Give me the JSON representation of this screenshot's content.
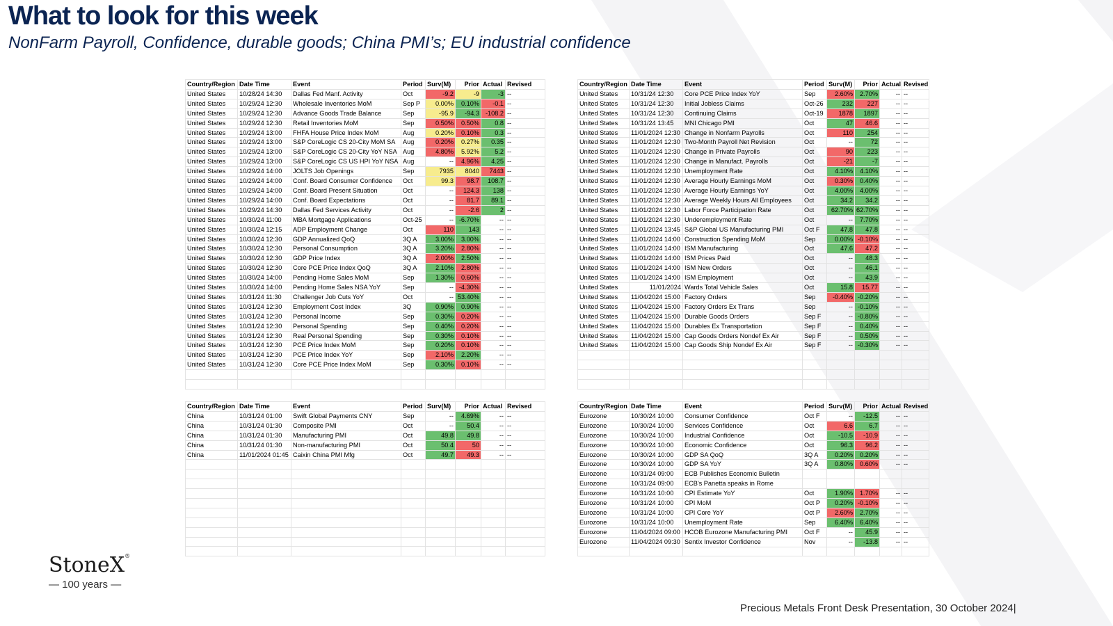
{
  "header": {
    "title": "What to look for this week",
    "subtitle": "NonFarm Payroll, Confidence, durable goods; China PMI’s; EU industrial confidence"
  },
  "columns": [
    "Country/Region",
    "Date Time",
    "Event",
    "Period",
    "Surv(M)",
    "Prior",
    "Actual",
    "Revised"
  ],
  "colors": {
    "green": "#6bbf6f",
    "red": "#f26868",
    "yellow": "#f7ec8e",
    "title": "#0b2452"
  },
  "tables": {
    "us_left": [
      [
        "United States",
        "10/28/24 14:30",
        "Dallas Fed Manf. Activity",
        "Oct",
        "-9.2",
        "-9",
        "-3",
        "--"
      ],
      [
        "United States",
        "10/29/24 12:30",
        "Wholesale Inventories MoM",
        "Sep P",
        "0.00%",
        "0.10%",
        "-0.1",
        "--"
      ],
      [
        "United States",
        "10/29/24 12:30",
        "Advance Goods Trade Balance",
        "Sep",
        "-95.9",
        "-94.3",
        "-108.2",
        "--"
      ],
      [
        "United States",
        "10/29/24 12:30",
        "Retail Inventories MoM",
        "Sep",
        "0.50%",
        "0.50%",
        "0.8",
        "--"
      ],
      [
        "United States",
        "10/29/24 13:00",
        "FHFA House Price Index MoM",
        "Aug",
        "0.20%",
        "0.10%",
        "0.3",
        "--"
      ],
      [
        "United States",
        "10/29/24 13:00",
        "S&P CoreLogic CS 20-City MoM SA",
        "Aug",
        "0.20%",
        "0.27%",
        "0.35",
        "--"
      ],
      [
        "United States",
        "10/29/24 13:00",
        "S&P CoreLogic CS 20-City YoY NSA",
        "Aug",
        "4.80%",
        "5.92%",
        "5.2",
        "--"
      ],
      [
        "United States",
        "10/29/24 13:00",
        "S&P CoreLogic CS US HPI YoY NSA",
        "Aug",
        "--",
        "4.96%",
        "4.25",
        "--"
      ],
      [
        "United States",
        "10/29/24 14:00",
        "JOLTS Job Openings",
        "Sep",
        "7935",
        "8040",
        "7443",
        "--"
      ],
      [
        "United States",
        "10/29/24 14:00",
        "Conf. Board Consumer Confidence",
        "Oct",
        "99.3",
        "98.7",
        "108.7",
        "--"
      ],
      [
        "United States",
        "10/29/24 14:00",
        "Conf. Board Present Situation",
        "Oct",
        "--",
        "124.3",
        "138",
        "--"
      ],
      [
        "United States",
        "10/29/24 14:00",
        "Conf. Board Expectations",
        "Oct",
        "--",
        "81.7",
        "89.1",
        "--"
      ],
      [
        "United States",
        "10/29/24 14:30",
        "Dallas Fed Services Activity",
        "Oct",
        "--",
        "-2.6",
        "2",
        "--"
      ],
      [
        "United States",
        "10/30/24 11:00",
        "MBA Mortgage Applications",
        "Oct-25",
        "--",
        "-6.70%",
        "--",
        "--"
      ],
      [
        "United States",
        "10/30/24 12:15",
        "ADP Employment Change",
        "Oct",
        "110",
        "143",
        "--",
        "--"
      ],
      [
        "United States",
        "10/30/24 12:30",
        "GDP Annualized QoQ",
        "3Q A",
        "3.00%",
        "3.00%",
        "--",
        "--"
      ],
      [
        "United States",
        "10/30/24 12:30",
        "Personal Consumption",
        "3Q A",
        "3.20%",
        "2.80%",
        "--",
        "--"
      ],
      [
        "United States",
        "10/30/24 12:30",
        "GDP Price Index",
        "3Q A",
        "2.00%",
        "2.50%",
        "--",
        "--"
      ],
      [
        "United States",
        "10/30/24 12:30",
        "Core PCE Price Index QoQ",
        "3Q A",
        "2.10%",
        "2.80%",
        "--",
        "--"
      ],
      [
        "United States",
        "10/30/24 14:00",
        "Pending Home Sales MoM",
        "Sep",
        "1.30%",
        "0.60%",
        "--",
        "--"
      ],
      [
        "United States",
        "10/30/24 14:00",
        "Pending Home Sales NSA YoY",
        "Sep",
        "--",
        "-4.30%",
        "--",
        "--"
      ],
      [
        "United States",
        "10/31/24 11:30",
        "Challenger Job Cuts YoY",
        "Oct",
        "--",
        "53.40%",
        "--",
        "--"
      ],
      [
        "United States",
        "10/31/24 12:30",
        "Employment Cost Index",
        "3Q",
        "0.90%",
        "0.90%",
        "--",
        "--"
      ],
      [
        "United States",
        "10/31/24 12:30",
        "Personal Income",
        "Sep",
        "0.30%",
        "0.20%",
        "--",
        "--"
      ],
      [
        "United States",
        "10/31/24 12:30",
        "Personal Spending",
        "Sep",
        "0.40%",
        "0.20%",
        "--",
        "--"
      ],
      [
        "United States",
        "10/31/24 12:30",
        "Real Personal Spending",
        "Sep",
        "0.30%",
        "0.10%",
        "--",
        "--"
      ],
      [
        "United States",
        "10/31/24 12:30",
        "PCE Price Index MoM",
        "Sep",
        "0.20%",
        "0.10%",
        "--",
        "--"
      ],
      [
        "United States",
        "10/31/24 12:30",
        "PCE Price Index YoY",
        "Sep",
        "2.10%",
        "2.20%",
        "--",
        "--"
      ],
      [
        "United States",
        "10/31/24 12:30",
        "Core PCE Price Index MoM",
        "Sep",
        "0.30%",
        "0.10%",
        "--",
        "--"
      ]
    ],
    "us_right": [
      [
        "United States",
        "10/31/24 12:30",
        "Core PCE Price Index YoY",
        "Sep",
        "2.60%",
        "2.70%",
        "--",
        "--"
      ],
      [
        "United States",
        "10/31/24 12:30",
        "Initial Jobless Claims",
        "Oct-26",
        "232",
        "227",
        "--",
        "--"
      ],
      [
        "United States",
        "10/31/24 12:30",
        "Continuing Claims",
        "Oct-19",
        "1878",
        "1897",
        "--",
        "--"
      ],
      [
        "United States",
        "10/31/24 13:45",
        "MNI Chicago PMI",
        "Oct",
        "47",
        "46.6",
        "--",
        "--"
      ],
      [
        "United States",
        "11/01/2024 12:30",
        "Change in Nonfarm Payrolls",
        "Oct",
        "110",
        "254",
        "--",
        "--"
      ],
      [
        "United States",
        "11/01/2024 12:30",
        "Two-Month Payroll Net Revision",
        "Oct",
        "--",
        "72",
        "--",
        "--"
      ],
      [
        "United States",
        "11/01/2024 12:30",
        "Change in Private Payrolls",
        "Oct",
        "90",
        "223",
        "--",
        "--"
      ],
      [
        "United States",
        "11/01/2024 12:30",
        "Change in Manufact. Payrolls",
        "Oct",
        "-21",
        "-7",
        "--",
        "--"
      ],
      [
        "United States",
        "11/01/2024 12:30",
        "Unemployment Rate",
        "Oct",
        "4.10%",
        "4.10%",
        "--",
        "--"
      ],
      [
        "United States",
        "11/01/2024 12:30",
        "Average Hourly Earnings MoM",
        "Oct",
        "0.30%",
        "0.40%",
        "--",
        "--"
      ],
      [
        "United States",
        "11/01/2024 12:30",
        "Average Hourly Earnings YoY",
        "Oct",
        "4.00%",
        "4.00%",
        "--",
        "--"
      ],
      [
        "United States",
        "11/01/2024 12:30",
        "Average Weekly Hours All Employees",
        "Oct",
        "34.2",
        "34.2",
        "--",
        "--"
      ],
      [
        "United States",
        "11/01/2024 12:30",
        "Labor Force Participation Rate",
        "Oct",
        "62.70%",
        "62.70%",
        "--",
        "--"
      ],
      [
        "United States",
        "11/01/2024 12:30",
        "Underemployment Rate",
        "Oct",
        "--",
        "7.70%",
        "--",
        "--"
      ],
      [
        "United States",
        "11/01/2024 13:45",
        "S&P Global US Manufacturing PMI",
        "Oct F",
        "47.8",
        "47.8",
        "--",
        "--"
      ],
      [
        "United States",
        "11/01/2024 14:00",
        "Construction Spending MoM",
        "Sep",
        "0.00%",
        "-0.10%",
        "--",
        "--"
      ],
      [
        "United States",
        "11/01/2024 14:00",
        "ISM Manufacturing",
        "Oct",
        "47.6",
        "47.2",
        "--",
        "--"
      ],
      [
        "United States",
        "11/01/2024 14:00",
        "ISM Prices Paid",
        "Oct",
        "--",
        "48.3",
        "--",
        "--"
      ],
      [
        "United States",
        "11/01/2024 14:00",
        "ISM New Orders",
        "Oct",
        "--",
        "46.1",
        "--",
        "--"
      ],
      [
        "United States",
        "11/01/2024 14:00",
        "ISM Employment",
        "Oct",
        "--",
        "43.9",
        "--",
        "--"
      ],
      [
        "United States",
        "11/01/2024",
        "Wards Total Vehicle Sales",
        "Oct",
        "15.8",
        "15.77",
        "--",
        "--"
      ],
      [
        "United States",
        "11/04/2024 15:00",
        "Factory Orders",
        "Sep",
        "-0.40%",
        "-0.20%",
        "--",
        "--"
      ],
      [
        "United States",
        "11/04/2024 15:00",
        "Factory Orders Ex Trans",
        "Sep",
        "--",
        "-0.10%",
        "--",
        "--"
      ],
      [
        "United States",
        "11/04/2024 15:00",
        "Durable Goods Orders",
        "Sep F",
        "--",
        "-0.80%",
        "--",
        "--"
      ],
      [
        "United States",
        "11/04/2024 15:00",
        "Durables Ex Transportation",
        "Sep F",
        "--",
        "0.40%",
        "--",
        "--"
      ],
      [
        "United States",
        "11/04/2024 15:00",
        "Cap Goods Orders Nondef Ex Air",
        "Sep F",
        "--",
        "0.50%",
        "--",
        "--"
      ],
      [
        "United States",
        "11/04/2024 15:00",
        "Cap Goods Ship Nondef Ex Air",
        "Sep F",
        "--",
        "-0.30%",
        "--",
        "--"
      ]
    ],
    "china": [
      [
        "China",
        "10/31/24 01:00",
        "Swift Global Payments CNY",
        "Sep",
        "--",
        "4.69%",
        "--",
        "--"
      ],
      [
        "China",
        "10/31/24 01:30",
        "Composite PMI",
        "Oct",
        "--",
        "50.4",
        "--",
        "--"
      ],
      [
        "China",
        "10/31/24 01:30",
        "Manufacturing PMI",
        "Oct",
        "49.8",
        "49.8",
        "--",
        "--"
      ],
      [
        "China",
        "10/31/24 01:30",
        "Non-manufacturing PMI",
        "Oct",
        "50.4",
        "50",
        "--",
        "--"
      ],
      [
        "China",
        "11/01/2024 01:45",
        "Caixin China PMI Mfg",
        "Oct",
        "49.7",
        "49.3",
        "--",
        "--"
      ]
    ],
    "eurozone": [
      [
        "Eurozone",
        "10/30/24 10:00",
        "Consumer Confidence",
        "Oct F",
        "--",
        "-12.5",
        "--",
        "--"
      ],
      [
        "Eurozone",
        "10/30/24 10:00",
        "Services Confidence",
        "Oct",
        "6.6",
        "6.7",
        "--",
        "--"
      ],
      [
        "Eurozone",
        "10/30/24 10:00",
        "Industrial Confidence",
        "Oct",
        "-10.5",
        "-10.9",
        "--",
        "--"
      ],
      [
        "Eurozone",
        "10/30/24 10:00",
        "Economic Confidence",
        "Oct",
        "96.3",
        "96.2",
        "--",
        "--"
      ],
      [
        "Eurozone",
        "10/30/24 10:00",
        "GDP SA QoQ",
        "3Q A",
        "0.20%",
        "0.20%",
        "--",
        "--"
      ],
      [
        "Eurozone",
        "10/30/24 10:00",
        "GDP SA YoY",
        "3Q A",
        "0.80%",
        "0.60%",
        "--",
        "--"
      ],
      [
        "Eurozone",
        "10/31/24 09:00",
        "ECB Publishes Economic Bulletin",
        "",
        "",
        "",
        "",
        ""
      ],
      [
        "Eurozone",
        "10/31/24 09:00",
        "ECB's Panetta speaks in Rome",
        "",
        "",
        "",
        "",
        ""
      ],
      [
        "Eurozone",
        "10/31/24 10:00",
        "CPI Estimate YoY",
        "Oct",
        "1.90%",
        "1.70%",
        "--",
        "--"
      ],
      [
        "Eurozone",
        "10/31/24 10:00",
        "CPI MoM",
        "Oct P",
        "0.20%",
        "-0.10%",
        "--",
        "--"
      ],
      [
        "Eurozone",
        "10/31/24 10:00",
        "CPI Core YoY",
        "Oct P",
        "2.60%",
        "2.70%",
        "--",
        "--"
      ],
      [
        "Eurozone",
        "10/31/24 10:00",
        "Unemployment Rate",
        "Sep",
        "6.40%",
        "6.40%",
        "--",
        "--"
      ],
      [
        "Eurozone",
        "11/04/2024 09:00",
        "HCOB Eurozone Manufacturing PMI",
        "Oct F",
        "--",
        "45.9",
        "--",
        "--"
      ],
      [
        "Eurozone",
        "11/04/2024 09:30",
        "Sentix Investor Confidence",
        "Nov",
        "--",
        "-13.8",
        "--",
        "--"
      ]
    ]
  },
  "cell_colors": {
    "us_left": [
      [
        "r",
        "y",
        "g"
      ],
      [
        "y",
        "g",
        "r"
      ],
      [
        "y",
        "g",
        "r"
      ],
      [
        "r",
        "r",
        "g"
      ],
      [
        "y",
        "r",
        "g"
      ],
      [
        "r",
        "y",
        "g"
      ],
      [
        "r",
        "y",
        "g"
      ],
      [
        "",
        "r",
        "g"
      ],
      [
        "y",
        "y",
        "r"
      ],
      [
        "y",
        "r",
        "g"
      ],
      [
        "",
        "r",
        "g"
      ],
      [
        "",
        "r",
        "g"
      ],
      [
        "",
        "r",
        "g"
      ],
      [
        "",
        "g",
        ""
      ],
      [
        "r",
        "g",
        ""
      ],
      [
        "g",
        "g",
        ""
      ],
      [
        "g",
        "r",
        ""
      ],
      [
        "r",
        "g",
        ""
      ],
      [
        "g",
        "r",
        ""
      ],
      [
        "g",
        "r",
        ""
      ],
      [
        "",
        "r",
        ""
      ],
      [
        "",
        "g",
        ""
      ],
      [
        "g",
        "g",
        ""
      ],
      [
        "g",
        "r",
        ""
      ],
      [
        "g",
        "r",
        ""
      ],
      [
        "g",
        "r",
        ""
      ],
      [
        "g",
        "r",
        ""
      ],
      [
        "r",
        "g",
        ""
      ],
      [
        "g",
        "r",
        ""
      ]
    ],
    "us_right": [
      [
        "r",
        "g"
      ],
      [
        "g",
        "r"
      ],
      [
        "r",
        "g"
      ],
      [
        "g",
        "r"
      ],
      [
        "r",
        "g"
      ],
      [
        "",
        "g"
      ],
      [
        "r",
        "g"
      ],
      [
        "r",
        "g"
      ],
      [
        "g",
        "g"
      ],
      [
        "r",
        "g"
      ],
      [
        "g",
        "g"
      ],
      [
        "g",
        "g"
      ],
      [
        "g",
        "g"
      ],
      [
        "",
        "g"
      ],
      [
        "g",
        "g"
      ],
      [
        "g",
        "r"
      ],
      [
        "g",
        "r"
      ],
      [
        "",
        "g"
      ],
      [
        "",
        "g"
      ],
      [
        "",
        "g"
      ],
      [
        "g",
        "r"
      ],
      [
        "r",
        "g"
      ],
      [
        "",
        "g"
      ],
      [
        "",
        "g"
      ],
      [
        "",
        "g"
      ],
      [
        "",
        "g"
      ],
      [
        "",
        "g"
      ]
    ],
    "china": [
      [
        "",
        "g"
      ],
      [
        "",
        "g"
      ],
      [
        "g",
        "g"
      ],
      [
        "g",
        "r"
      ],
      [
        "g",
        "r"
      ]
    ],
    "eurozone": [
      [
        "",
        "g"
      ],
      [
        "r",
        "g"
      ],
      [
        "g",
        "r"
      ],
      [
        "g",
        "r"
      ],
      [
        "g",
        "g"
      ],
      [
        "g",
        "r"
      ],
      [
        "",
        ""
      ],
      [
        "",
        ""
      ],
      [
        "g",
        "r"
      ],
      [
        "g",
        "r"
      ],
      [
        "r",
        "g"
      ],
      [
        "g",
        "g"
      ],
      [
        "",
        "g"
      ],
      [
        "",
        "g"
      ]
    ]
  },
  "logo": {
    "name": "StoneX",
    "mark": "®",
    "tagline": "— 100 years —"
  },
  "footer": {
    "text": "Precious Metals Front Desk Presentation, 30 October 2024|"
  }
}
